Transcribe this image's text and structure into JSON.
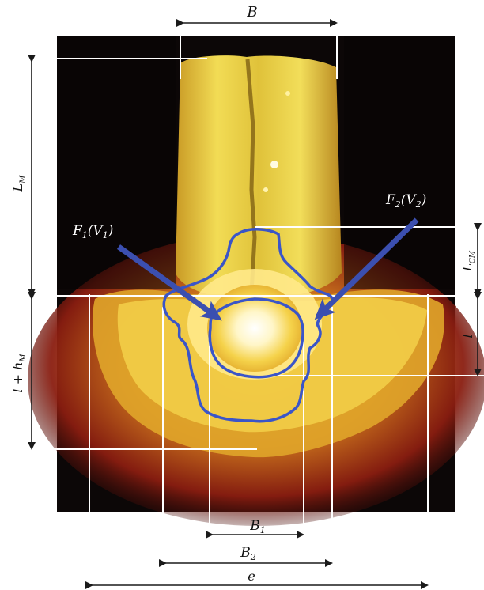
{
  "figure": {
    "labels": {
      "B": "B",
      "L_M": "L",
      "L_M_sub": "M",
      "L_CM": "L",
      "L_CM_sub": "CM",
      "l_right": "l",
      "l_h_M_left": "l + h",
      "l_h_M_sub": "M",
      "B1": "B",
      "B1_sub": "1",
      "B2": "B",
      "B2_sub": "2",
      "e": "e",
      "F1_V1": "F",
      "F1_sub": "1",
      "F1_paren": "(V",
      "F1_paren_sub": "1",
      "F2_V2": "F",
      "F2_sub": "2",
      "F2_paren": "(V",
      "F2_paren_sub": "2",
      "close_paren": ")"
    },
    "colors": {
      "contour": "#3a55c8",
      "arrow": "#3b4fb0",
      "dimension_line": "#1a1a1a",
      "guide_line": "#ffffff",
      "background": "#0a0606",
      "weld_glow": "#ffe86a"
    }
  }
}
